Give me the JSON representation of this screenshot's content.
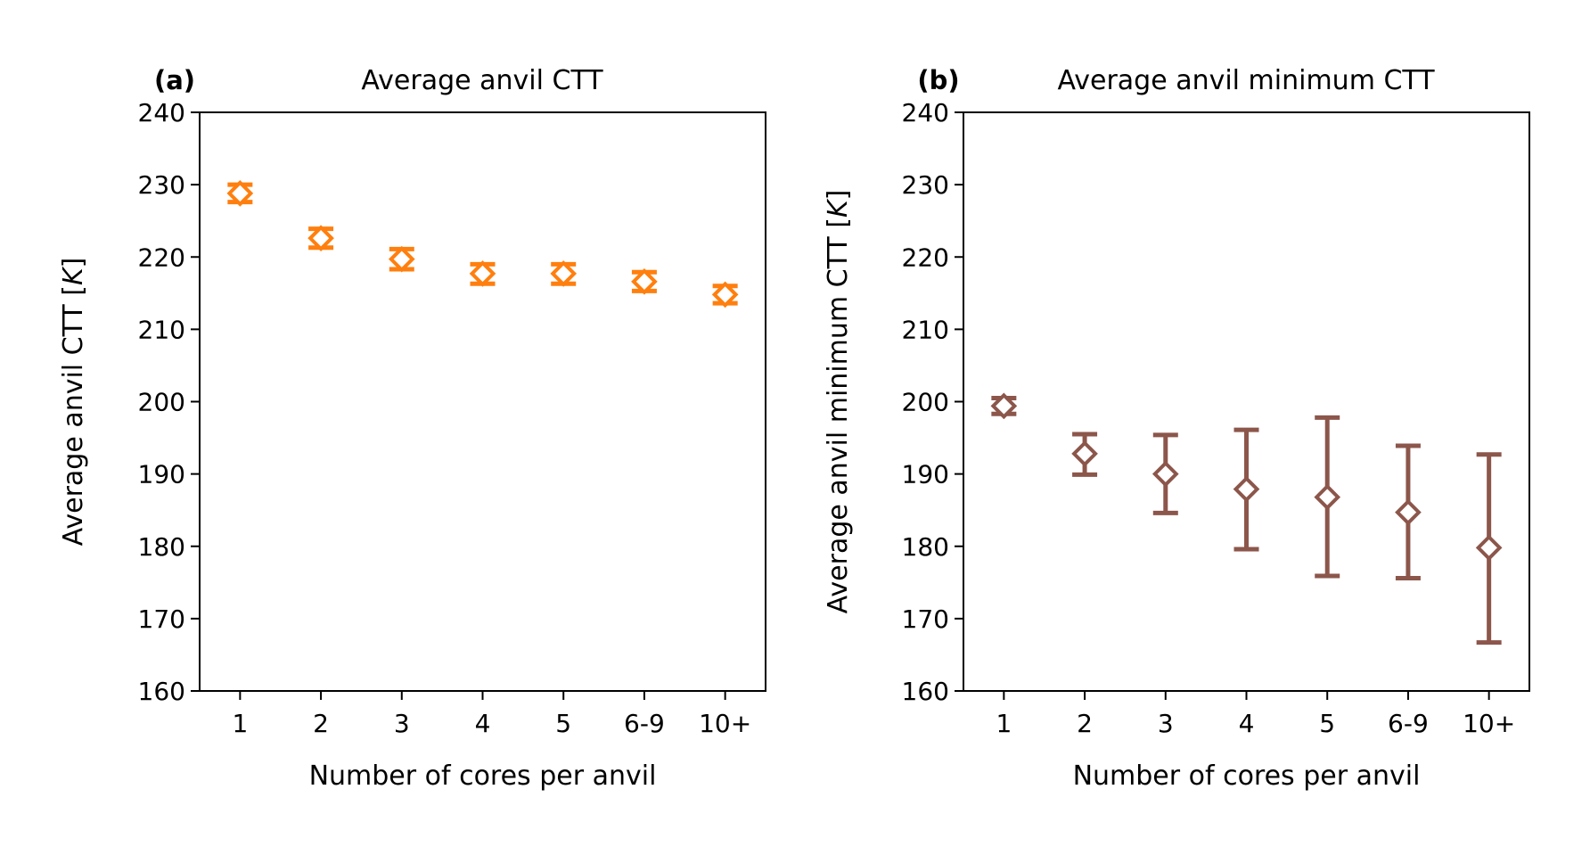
{
  "chart_data": [
    {
      "type": "scatter",
      "panel_label": "(a)",
      "title": "Average anvil CTT",
      "xlabel": "Number of cores per anvil",
      "ylabel": "Average anvil CTT [K]",
      "ylabel_parts": {
        "text": "Average anvil CTT [",
        "unit": "K",
        "close": "]"
      },
      "categories": [
        "1",
        "2",
        "3",
        "4",
        "5",
        "6-9",
        "10+"
      ],
      "yticks": [
        "160",
        "170",
        "180",
        "190",
        "200",
        "210",
        "220",
        "230",
        "240"
      ],
      "ylim": [
        160,
        240
      ],
      "grid": false,
      "marker": "diamond",
      "color": "#ff7f0e",
      "series": [
        {
          "values": [
            228.8,
            222.6,
            219.7,
            217.7,
            217.7,
            216.6,
            214.8
          ],
          "err_low": [
            227.6,
            221.3,
            218.3,
            216.3,
            216.3,
            215.3,
            213.6
          ],
          "err_high": [
            230.0,
            223.9,
            221.1,
            219.0,
            219.0,
            217.9,
            216.0
          ]
        }
      ]
    },
    {
      "type": "scatter",
      "panel_label": "(b)",
      "title": "Average anvil minimum CTT",
      "xlabel": "Number of cores per anvil",
      "ylabel": "Average anvil minimum CTT [K]",
      "ylabel_parts": {
        "text": "Average anvil minimum CTT [",
        "unit": "K",
        "close": "]"
      },
      "categories": [
        "1",
        "2",
        "3",
        "4",
        "5",
        "6-9",
        "10+"
      ],
      "yticks": [
        "160",
        "170",
        "180",
        "190",
        "200",
        "210",
        "220",
        "230",
        "240"
      ],
      "ylim": [
        160,
        240
      ],
      "grid": false,
      "marker": "diamond",
      "color": "#8c564b",
      "series": [
        {
          "values": [
            199.4,
            192.8,
            190.0,
            187.9,
            186.8,
            184.7,
            179.8
          ],
          "err_low": [
            198.3,
            189.9,
            184.6,
            179.6,
            175.9,
            175.6,
            166.7
          ],
          "err_high": [
            200.5,
            195.5,
            195.4,
            196.1,
            197.8,
            193.9,
            192.7
          ]
        }
      ]
    }
  ]
}
